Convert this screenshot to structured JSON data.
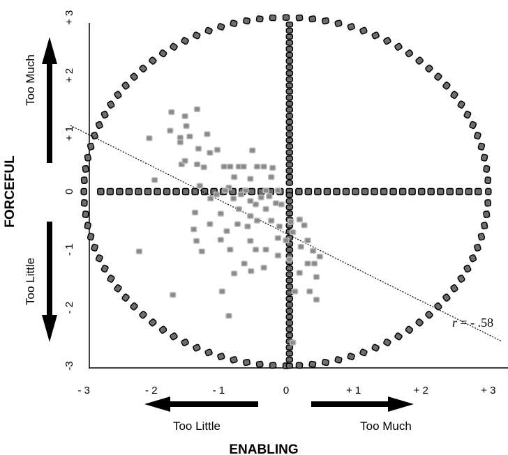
{
  "chart_data": {
    "type": "scatter",
    "x_axis": {
      "title": "ENABLING",
      "range": [
        -3,
        3
      ],
      "tick_values": [
        -3,
        -2,
        -1,
        0,
        1,
        2,
        3
      ],
      "tick_labels": [
        "- 3",
        "- 2",
        "- 1",
        "0",
        "+ 1",
        "+ 2",
        "+ 3"
      ],
      "low_label": "Too Little",
      "high_label": "Too Much"
    },
    "y_axis": {
      "title": "FORCEFUL",
      "range": [
        -3,
        3
      ],
      "tick_values": [
        -3,
        -2,
        -1,
        0,
        1,
        2,
        3
      ],
      "tick_labels": [
        "-3",
        "- 2",
        "- 1",
        "0",
        "+ 1",
        "+ 2",
        "+ 3"
      ],
      "low_label": "Too Little",
      "high_label": "Too Much"
    },
    "annotation": {
      "text_italic": "r",
      "text_rest": " = - .58"
    },
    "regression_line": {
      "points": [
        [
          -3.2,
          1.14
        ],
        [
          3.2,
          -2.58
        ]
      ]
    },
    "reference_circle": {
      "center": [
        0,
        0
      ],
      "radius": 3
    },
    "reference_markers": "circle at radius 3 plus horizontal and vertical lines of markers through 0",
    "grid": false,
    "legend": "none",
    "colors": {
      "reference_marker_fill": "#6e6e6e",
      "reference_marker_stroke": "#000000",
      "data_marker_fill": "#8a8a8a",
      "data_marker_stroke": "#c0c0c0",
      "axis": "#000000"
    },
    "points": [
      {
        "x": -1.7,
        "y": 1.37
      },
      {
        "x": -1.32,
        "y": 1.42
      },
      {
        "x": -1.5,
        "y": 1.3
      },
      {
        "x": -1.48,
        "y": 1.13
      },
      {
        "x": -1.72,
        "y": 1.05
      },
      {
        "x": -1.57,
        "y": 0.93
      },
      {
        "x": -1.43,
        "y": 0.95
      },
      {
        "x": -2.03,
        "y": 0.92
      },
      {
        "x": -1.57,
        "y": 0.85
      },
      {
        "x": -1.17,
        "y": 0.99
      },
      {
        "x": -1.3,
        "y": 0.74
      },
      {
        "x": -1.13,
        "y": 0.67
      },
      {
        "x": -1.02,
        "y": 0.72
      },
      {
        "x": -0.5,
        "y": 0.71
      },
      {
        "x": -1.55,
        "y": 0.47
      },
      {
        "x": -1.5,
        "y": 0.53
      },
      {
        "x": -1.32,
        "y": 0.47
      },
      {
        "x": -1.22,
        "y": 0.42
      },
      {
        "x": -0.92,
        "y": 0.43
      },
      {
        "x": -0.83,
        "y": 0.43
      },
      {
        "x": -0.7,
        "y": 0.43
      },
      {
        "x": -0.63,
        "y": 0.43
      },
      {
        "x": -0.43,
        "y": 0.43
      },
      {
        "x": -0.33,
        "y": 0.43
      },
      {
        "x": -0.2,
        "y": 0.41
      },
      {
        "x": -1.95,
        "y": 0.2
      },
      {
        "x": -1.28,
        "y": 0.1
      },
      {
        "x": -0.22,
        "y": 0.25
      },
      {
        "x": -0.77,
        "y": 0.25
      },
      {
        "x": -0.85,
        "y": 0.07
      },
      {
        "x": -0.53,
        "y": 0.22
      },
      {
        "x": -0.3,
        "y": 0.02
      },
      {
        "x": -0.12,
        "y": 0.02
      },
      {
        "x": -0.6,
        "y": 0.02
      },
      {
        "x": -0.9,
        "y": 0.02
      },
      {
        "x": -1.03,
        "y": -0.05
      },
      {
        "x": -1.12,
        "y": -0.12
      },
      {
        "x": -0.78,
        "y": -0.12
      },
      {
        "x": -0.67,
        "y": -0.05
      },
      {
        "x": -0.53,
        "y": -0.16
      },
      {
        "x": -0.45,
        "y": -0.22
      },
      {
        "x": -0.37,
        "y": -0.1
      },
      {
        "x": -0.25,
        "y": -0.08
      },
      {
        "x": -0.15,
        "y": -0.2
      },
      {
        "x": -0.07,
        "y": -0.22
      },
      {
        "x": -0.3,
        "y": -0.3
      },
      {
        "x": -1.35,
        "y": -0.36
      },
      {
        "x": -0.97,
        "y": -0.38
      },
      {
        "x": -0.7,
        "y": -0.3
      },
      {
        "x": -0.53,
        "y": -0.42
      },
      {
        "x": -0.72,
        "y": -0.56
      },
      {
        "x": -0.57,
        "y": -0.6
      },
      {
        "x": -0.43,
        "y": -0.5
      },
      {
        "x": -0.22,
        "y": -0.5
      },
      {
        "x": -1.37,
        "y": -0.65
      },
      {
        "x": -1.13,
        "y": -0.56
      },
      {
        "x": -0.88,
        "y": -0.68
      },
      {
        "x": -0.1,
        "y": -0.6
      },
      {
        "x": 0.07,
        "y": -0.52
      },
      {
        "x": 0.2,
        "y": -0.48
      },
      {
        "x": 0.27,
        "y": -0.58
      },
      {
        "x": 0.1,
        "y": -0.7
      },
      {
        "x": -1.33,
        "y": -0.85
      },
      {
        "x": -0.97,
        "y": -0.83
      },
      {
        "x": -0.53,
        "y": -0.85
      },
      {
        "x": -0.12,
        "y": -0.8
      },
      {
        "x": 0.0,
        "y": -0.84
      },
      {
        "x": 0.22,
        "y": -0.95
      },
      {
        "x": 0.32,
        "y": -0.84
      },
      {
        "x": -2.18,
        "y": -1.03
      },
      {
        "x": -1.25,
        "y": -1.03
      },
      {
        "x": -0.83,
        "y": -1.0
      },
      {
        "x": -0.45,
        "y": -1.0
      },
      {
        "x": -0.3,
        "y": -1.0
      },
      {
        "x": -0.12,
        "y": -1.1
      },
      {
        "x": 0.05,
        "y": -1.17
      },
      {
        "x": -0.62,
        "y": -1.24
      },
      {
        "x": -0.52,
        "y": -1.37
      },
      {
        "x": -0.33,
        "y": -1.31
      },
      {
        "x": -0.77,
        "y": -1.41
      },
      {
        "x": 0.2,
        "y": -1.4
      },
      {
        "x": 0.32,
        "y": -1.24
      },
      {
        "x": 0.42,
        "y": -1.24
      },
      {
        "x": 0.5,
        "y": -1.12
      },
      {
        "x": 0.4,
        "y": -1.02
      },
      {
        "x": 0.45,
        "y": -1.47
      },
      {
        "x": -0.95,
        "y": -1.72
      },
      {
        "x": 0.13,
        "y": -1.72
      },
      {
        "x": 0.35,
        "y": -1.72
      },
      {
        "x": 0.45,
        "y": -1.86
      },
      {
        "x": -1.68,
        "y": -1.78
      },
      {
        "x": -0.85,
        "y": -2.14
      },
      {
        "x": 0.1,
        "y": -2.6
      }
    ]
  }
}
